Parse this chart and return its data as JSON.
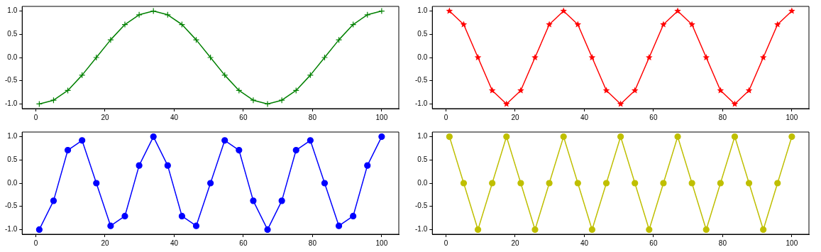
{
  "chart_data": [
    {
      "type": "line",
      "x": [
        1,
        5.125,
        9.25,
        13.375,
        17.5,
        21.625,
        25.75,
        29.875,
        34,
        38.125,
        42.25,
        46.375,
        50.5,
        54.625,
        58.75,
        62.875,
        67,
        71.125,
        75.25,
        79.375,
        83.5,
        87.625,
        91.75,
        95.875,
        100
      ],
      "series": [
        {
          "color": "#008000",
          "values": [
            -1,
            -0.92,
            -0.71,
            -0.38,
            0,
            0.38,
            0.71,
            0.92,
            1,
            0.92,
            0.71,
            0.38,
            0,
            -0.38,
            -0.71,
            -0.92,
            -1,
            -0.92,
            -0.71,
            -0.38,
            0,
            0.38,
            0.71,
            0.92,
            1
          ]
        }
      ],
      "marker": "cross",
      "line_style": "solid",
      "grid": false,
      "legend": false,
      "xlim": [
        -3.95,
        104.95
      ],
      "xticks": [
        0,
        20,
        40,
        60,
        80,
        100
      ],
      "ylim": [
        -1.1,
        1.1
      ],
      "yticks": [
        {
          "value": -1,
          "label": "-1.0"
        },
        {
          "value": -0.5,
          "label": "-0.5"
        },
        {
          "value": 0,
          "label": "0.0"
        },
        {
          "value": 0.5,
          "label": "0.5"
        },
        {
          "value": 1,
          "label": "1.0"
        }
      ]
    },
    {
      "type": "line",
      "x": [
        1,
        5.125,
        9.25,
        13.375,
        17.5,
        21.625,
        25.75,
        29.875,
        34,
        38.125,
        42.25,
        46.375,
        50.5,
        54.625,
        58.75,
        62.875,
        67,
        71.125,
        75.25,
        79.375,
        83.5,
        87.625,
        91.75,
        95.875,
        100
      ],
      "series": [
        {
          "color": "#ff0000",
          "values": [
            1,
            0.71,
            0,
            -0.71,
            -1,
            -0.71,
            0,
            0.71,
            1,
            0.71,
            0,
            -0.71,
            -1,
            -0.71,
            0,
            0.71,
            1,
            0.71,
            0,
            -0.71,
            -1,
            -0.71,
            0,
            0.71,
            1
          ]
        }
      ],
      "marker": "star",
      "line_style": "solid",
      "grid": false,
      "legend": false,
      "xlim": [
        -3.95,
        104.95
      ],
      "xticks": [
        0,
        20,
        40,
        60,
        80,
        100
      ],
      "ylim": [
        -1.1,
        1.1
      ],
      "yticks": [
        {
          "value": -1,
          "label": "-1.0"
        },
        {
          "value": -0.5,
          "label": "-0.5"
        },
        {
          "value": 0,
          "label": "0.0"
        },
        {
          "value": 0.5,
          "label": "0.5"
        },
        {
          "value": 1,
          "label": "1.0"
        }
      ]
    },
    {
      "type": "line",
      "x": [
        1,
        5.125,
        9.25,
        13.375,
        17.5,
        21.625,
        25.75,
        29.875,
        34,
        38.125,
        42.25,
        46.375,
        50.5,
        54.625,
        58.75,
        62.875,
        67,
        71.125,
        75.25,
        79.375,
        83.5,
        87.625,
        91.75,
        95.875,
        100
      ],
      "series": [
        {
          "color": "#0000ff",
          "values": [
            -1,
            -0.38,
            0.71,
            0.92,
            0,
            -0.92,
            -0.71,
            0.38,
            1,
            0.38,
            -0.71,
            -0.92,
            0,
            0.92,
            0.71,
            -0.38,
            -1,
            -0.38,
            0.71,
            0.92,
            0,
            -0.92,
            -0.71,
            0.38,
            1
          ]
        }
      ],
      "marker": "circle",
      "line_style": "solid",
      "grid": false,
      "legend": false,
      "xlim": [
        -3.95,
        104.95
      ],
      "xticks": [
        0,
        20,
        40,
        60,
        80,
        100
      ],
      "ylim": [
        -1.1,
        1.1
      ],
      "yticks": [
        {
          "value": -1,
          "label": "-1.0"
        },
        {
          "value": -0.5,
          "label": "-0.5"
        },
        {
          "value": 0,
          "label": "0.0"
        },
        {
          "value": 0.5,
          "label": "0.5"
        },
        {
          "value": 1,
          "label": "1.0"
        }
      ]
    },
    {
      "type": "line",
      "x": [
        1,
        5.125,
        9.25,
        13.375,
        17.5,
        21.625,
        25.75,
        29.875,
        34,
        38.125,
        42.25,
        46.375,
        50.5,
        54.625,
        58.75,
        62.875,
        67,
        71.125,
        75.25,
        79.375,
        83.5,
        87.625,
        91.75,
        95.875,
        100
      ],
      "series": [
        {
          "color": "#bfbf00",
          "values": [
            1,
            0,
            -1,
            0,
            1,
            0,
            -1,
            0,
            1,
            0,
            -1,
            0,
            1,
            0,
            -1,
            0,
            1,
            0,
            -1,
            0,
            1,
            0,
            -1,
            0,
            1
          ]
        }
      ],
      "marker": "circle",
      "line_style": "solid",
      "grid": false,
      "legend": false,
      "xlim": [
        -3.95,
        104.95
      ],
      "xticks": [
        0,
        20,
        40,
        60,
        80,
        100
      ],
      "ylim": [
        -1.1,
        1.1
      ],
      "yticks": [
        {
          "value": -1,
          "label": "-1.0"
        },
        {
          "value": -0.5,
          "label": "-0.5"
        },
        {
          "value": 0,
          "label": "0.0"
        },
        {
          "value": 0.5,
          "label": "0.5"
        },
        {
          "value": 1,
          "label": "1.0"
        }
      ]
    }
  ]
}
